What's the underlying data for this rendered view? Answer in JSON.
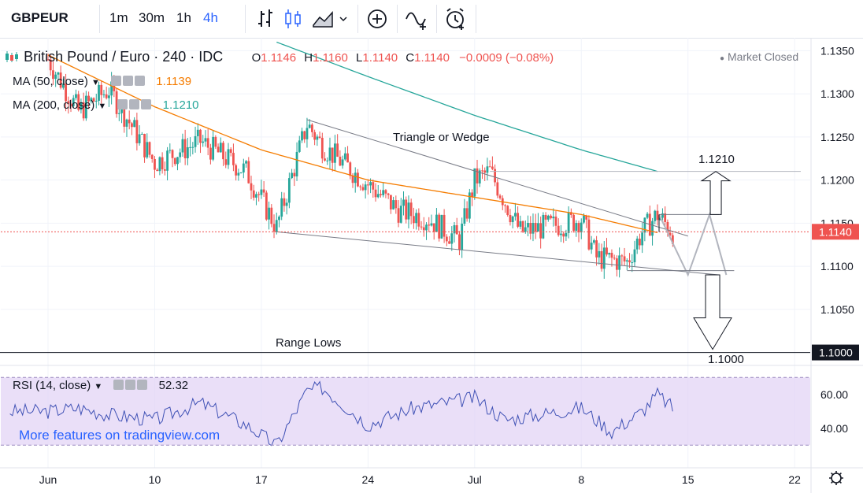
{
  "toolbar": {
    "symbol": "GBPEUR",
    "intervals": [
      "1m",
      "30m",
      "1h",
      "4h"
    ],
    "active_interval": "4h",
    "icons": [
      "bar-chart-icon",
      "candlestick-icon",
      "area-chart-icon",
      "dropdown-icon",
      "add-compare-icon",
      "indicators-icon",
      "alert-icon"
    ]
  },
  "legend": {
    "title": "British Pound / Euro · 240 · IDC",
    "o_label": "O",
    "o_value": "1.1146",
    "h_label": "H",
    "h_value": "1.1160",
    "l_label": "L",
    "l_value": "1.1140",
    "c_label": "C",
    "c_value": "1.1140",
    "change": "−0.0009 (−0.08%)",
    "market_status": "Market Closed",
    "ma50_label": "MA (50, close)",
    "ma50_value": "1.1139",
    "ma200_label": "MA (200, close)",
    "ma200_value": "1.1210",
    "rsi_label": "RSI (14, close)",
    "rsi_value": "52.32"
  },
  "annotations": {
    "triangle_label": "Triangle or Wedge",
    "target_up": "1.1210",
    "range_lows": "Range Lows",
    "target_down": "1.1000"
  },
  "price_axis": {
    "ticks": [
      "1.1350",
      "1.1300",
      "1.1250",
      "1.1200",
      "1.1150",
      "1.1100",
      "1.1050"
    ],
    "current_price": "1.1140",
    "range_low_price": "1.1000"
  },
  "rsi_axis": {
    "ticks": [
      "60.00",
      "40.00"
    ]
  },
  "time_axis": {
    "ticks": [
      "Jun",
      "10",
      "17",
      "24",
      "Jul",
      "8",
      "15",
      "22"
    ]
  },
  "watermark": "More features on tradingview.com",
  "colors": {
    "up": "#26a69a",
    "down": "#ef5350",
    "ma50": "#f57c00",
    "ma200": "#26a69a",
    "rsi": "#3f51b5",
    "rsi_band": "#e1d2f5",
    "accent": "#2962ff",
    "last_price": "#ef5350"
  },
  "chart_data": {
    "type": "candlestick",
    "title": "British Pound / Euro · 240 · IDC",
    "ylim": [
      1.0985,
      1.1365
    ],
    "x_dates": [
      "Jun 3",
      "Jun 10",
      "Jun 17",
      "Jun 24",
      "Jul 1",
      "Jul 8",
      "Jul 15",
      "Jul 22"
    ],
    "close_path_anchors": [
      {
        "date": "Jun 3",
        "close": 1.134
      },
      {
        "date": "Jun 5",
        "close": 1.128
      },
      {
        "date": "Jun 7",
        "close": 1.1305
      },
      {
        "date": "Jun 10",
        "close": 1.122
      },
      {
        "date": "Jun 13",
        "close": 1.1245
      },
      {
        "date": "Jun 16",
        "close": 1.121
      },
      {
        "date": "Jun 18",
        "close": 1.1145
      },
      {
        "date": "Jun 20",
        "close": 1.1265
      },
      {
        "date": "Jun 21",
        "close": 1.124
      },
      {
        "date": "Jun 24",
        "close": 1.1195
      },
      {
        "date": "Jun 26",
        "close": 1.1165
      },
      {
        "date": "Jun 28",
        "close": 1.1155
      },
      {
        "date": "Jun 30",
        "close": 1.113
      },
      {
        "date": "Jul 1",
        "close": 1.12
      },
      {
        "date": "Jul 2",
        "close": 1.121
      },
      {
        "date": "Jul 4",
        "close": 1.114
      },
      {
        "date": "Jul 7",
        "close": 1.115
      },
      {
        "date": "Jul 8",
        "close": 1.1155
      },
      {
        "date": "Jul 9",
        "close": 1.111
      },
      {
        "date": "Jul 11",
        "close": 1.1105
      },
      {
        "date": "Jul 12",
        "close": 1.114
      },
      {
        "date": "Jul 13",
        "close": 1.116
      },
      {
        "date": "Jul 14",
        "close": 1.114
      }
    ],
    "ma50_anchors": [
      {
        "date": "Jun 3",
        "value": 1.1345
      },
      {
        "date": "Jun 10",
        "value": 1.1285
      },
      {
        "date": "Jun 17",
        "value": 1.1235
      },
      {
        "date": "Jun 24",
        "value": 1.12
      },
      {
        "date": "Jul 1",
        "value": 1.118
      },
      {
        "date": "Jul 8",
        "value": 1.116
      },
      {
        "date": "Jul 13",
        "value": 1.1139
      }
    ],
    "ma200_anchors": [
      {
        "date": "Jun 18",
        "value": 1.136
      },
      {
        "date": "Jun 24",
        "value": 1.132
      },
      {
        "date": "Jul 1",
        "value": 1.1275
      },
      {
        "date": "Jul 8",
        "value": 1.1235
      },
      {
        "date": "Jul 13",
        "value": 1.121
      }
    ],
    "trendlines": {
      "upper": [
        {
          "date": "Jun 20",
          "price": 1.127
        },
        {
          "date": "Jul 15",
          "price": 1.1135
        }
      ],
      "lower": [
        {
          "date": "Jun 18",
          "price": 1.114
        },
        {
          "date": "Jul 17",
          "price": 1.109
        }
      ]
    },
    "levels": {
      "target_up": 1.121,
      "range_lows": 1.1,
      "last_price": 1.114
    },
    "rsi": {
      "ylim": [
        25,
        72
      ],
      "upper_band": 70,
      "lower_band": 30,
      "last": 52.32,
      "anchors": [
        {
          "date": "Jun 3",
          "value": 50
        },
        {
          "date": "Jun 5",
          "value": 52
        },
        {
          "date": "Jun 7",
          "value": 48
        },
        {
          "date": "Jun 10",
          "value": 45
        },
        {
          "date": "Jun 13",
          "value": 55
        },
        {
          "date": "Jun 16",
          "value": 42
        },
        {
          "date": "Jun 18",
          "value": 30
        },
        {
          "date": "Jun 20",
          "value": 62
        },
        {
          "date": "Jun 21",
          "value": 64
        },
        {
          "date": "Jun 24",
          "value": 42
        },
        {
          "date": "Jun 27",
          "value": 52
        },
        {
          "date": "Jul 1",
          "value": 58
        },
        {
          "date": "Jul 3",
          "value": 45
        },
        {
          "date": "Jul 8",
          "value": 52
        },
        {
          "date": "Jul 10",
          "value": 38
        },
        {
          "date": "Jul 12",
          "value": 50
        },
        {
          "date": "Jul 13",
          "value": 60
        },
        {
          "date": "Jul 14",
          "value": 52
        }
      ]
    }
  }
}
